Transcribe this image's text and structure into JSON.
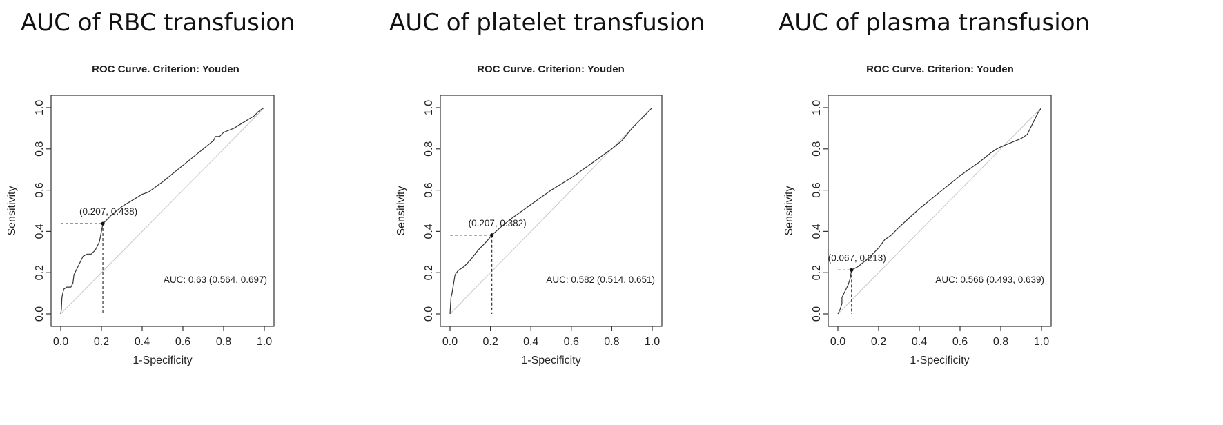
{
  "chart_data": [
    {
      "type": "line",
      "panel_title": "AUC of RBC transfusion",
      "title": "ROC Curve. Criterion: Youden",
      "xlabel": "1-Specificity",
      "ylabel": "Sensitivity",
      "xlim": [
        0,
        1
      ],
      "ylim": [
        0,
        1
      ],
      "xticks": [
        "0.0",
        "0.2",
        "0.4",
        "0.6",
        "0.8",
        "1.0"
      ],
      "yticks": [
        "0.0",
        "0.2",
        "0.4",
        "0.6",
        "0.8",
        "1.0"
      ],
      "reference_line": "diagonal",
      "series": [
        {
          "x": [
            0,
            0.003,
            0.006,
            0.01,
            0.015,
            0.03,
            0.05,
            0.06,
            0.065,
            0.08,
            0.09,
            0.1,
            0.11,
            0.13,
            0.15,
            0.17,
            0.18,
            0.19,
            0.2,
            0.207,
            0.22,
            0.25,
            0.3,
            0.35,
            0.4,
            0.43,
            0.5,
            0.6,
            0.7,
            0.75,
            0.76,
            0.78,
            0.8,
            0.85,
            0.9,
            0.95,
            0.97,
            0.99,
            1.0
          ],
          "y": [
            0,
            0.02,
            0.08,
            0.1,
            0.12,
            0.13,
            0.13,
            0.15,
            0.19,
            0.22,
            0.24,
            0.26,
            0.28,
            0.29,
            0.29,
            0.31,
            0.33,
            0.35,
            0.4,
            0.438,
            0.45,
            0.48,
            0.52,
            0.55,
            0.58,
            0.59,
            0.64,
            0.72,
            0.8,
            0.84,
            0.86,
            0.86,
            0.88,
            0.9,
            0.93,
            0.96,
            0.98,
            0.995,
            1.0
          ]
        }
      ],
      "optimal_point": {
        "x": 0.207,
        "y": 0.438
      },
      "point_label": "(0.207, 0.438)",
      "auc_label": "AUC: 0.63 (0.564, 0.697)"
    },
    {
      "type": "line",
      "panel_title": "AUC of platelet transfusion",
      "title": "ROC Curve. Criterion: Youden",
      "xlabel": "1-Specificity",
      "ylabel": "Sensitivity",
      "xlim": [
        0,
        1
      ],
      "ylim": [
        0,
        1
      ],
      "xticks": [
        "0.0",
        "0.2",
        "0.4",
        "0.6",
        "0.8",
        "1.0"
      ],
      "yticks": [
        "0.0",
        "0.2",
        "0.4",
        "0.6",
        "0.8",
        "1.0"
      ],
      "reference_line": "diagonal",
      "series": [
        {
          "x": [
            0,
            0.003,
            0.005,
            0.01,
            0.015,
            0.02,
            0.025,
            0.04,
            0.07,
            0.1,
            0.14,
            0.18,
            0.207,
            0.25,
            0.3,
            0.4,
            0.5,
            0.6,
            0.7,
            0.8,
            0.85,
            0.9,
            0.95,
            1.0
          ],
          "y": [
            0,
            0.05,
            0.08,
            0.1,
            0.13,
            0.16,
            0.19,
            0.21,
            0.23,
            0.26,
            0.31,
            0.35,
            0.382,
            0.42,
            0.46,
            0.53,
            0.6,
            0.66,
            0.73,
            0.8,
            0.84,
            0.9,
            0.95,
            1.0
          ]
        }
      ],
      "optimal_point": {
        "x": 0.207,
        "y": 0.382
      },
      "point_label": "(0.207, 0.382)",
      "auc_label": "AUC: 0.582 (0.514, 0.651)"
    },
    {
      "type": "line",
      "panel_title": "AUC of plasma transfusion",
      "title": "ROC Curve. Criterion: Youden",
      "xlabel": "1-Specificity",
      "ylabel": "Sensitivity",
      "xlim": [
        0,
        1
      ],
      "ylim": [
        0,
        1
      ],
      "xticks": [
        "0.0",
        "0.2",
        "0.4",
        "0.6",
        "0.8",
        "1.0"
      ],
      "yticks": [
        "0.0",
        "0.2",
        "0.4",
        "0.6",
        "0.8",
        "1.0"
      ],
      "reference_line": "diagonal",
      "series": [
        {
          "x": [
            0,
            0.01,
            0.02,
            0.02,
            0.035,
            0.05,
            0.06,
            0.067,
            0.1,
            0.15,
            0.2,
            0.23,
            0.26,
            0.3,
            0.4,
            0.5,
            0.6,
            0.7,
            0.75,
            0.78,
            0.8,
            0.85,
            0.9,
            0.93,
            0.96,
            0.98,
            1.0
          ],
          "y": [
            0,
            0.02,
            0.05,
            0.08,
            0.11,
            0.14,
            0.17,
            0.213,
            0.23,
            0.27,
            0.32,
            0.36,
            0.38,
            0.42,
            0.51,
            0.59,
            0.67,
            0.74,
            0.78,
            0.8,
            0.81,
            0.83,
            0.85,
            0.87,
            0.93,
            0.97,
            1.0
          ]
        }
      ],
      "optimal_point": {
        "x": 0.067,
        "y": 0.213
      },
      "point_label": "(0.067, 0.213)",
      "auc_label": "AUC: 0.566 (0.493, 0.639)"
    }
  ]
}
